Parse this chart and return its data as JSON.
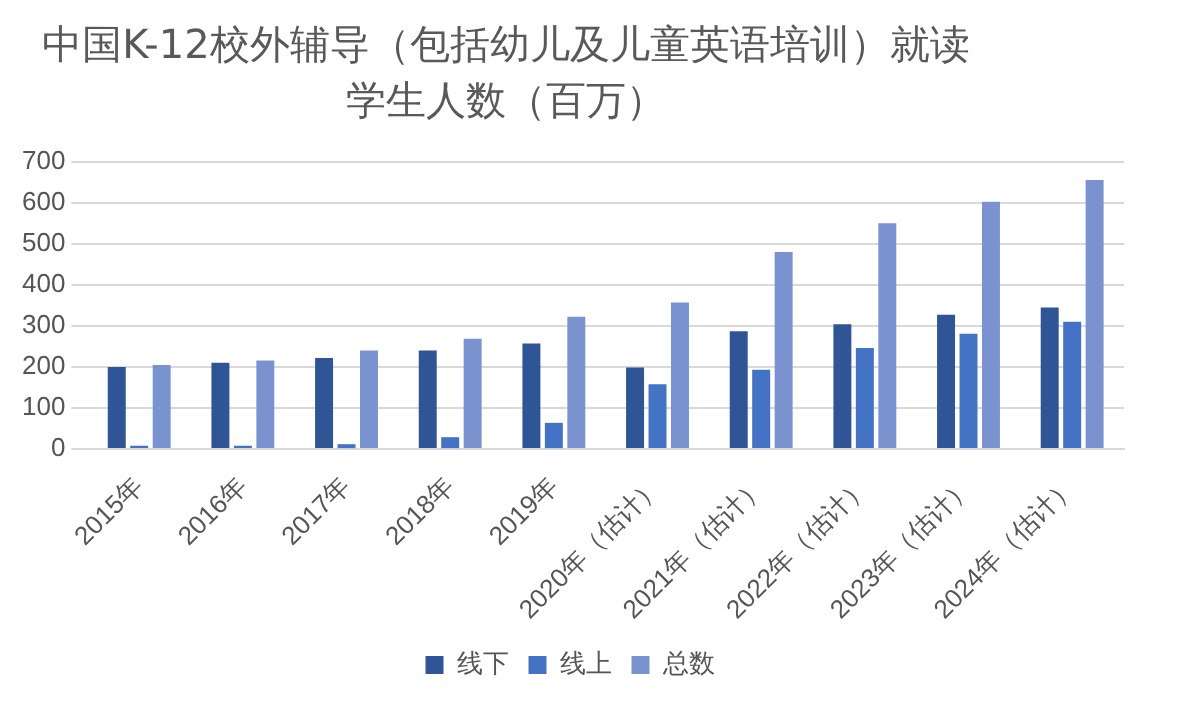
{
  "chart_data": {
    "type": "bar",
    "title": "中国K-12校外辅导（包括幼儿及儿童英语培训）就读学生人数（百万）",
    "categories": [
      "2015年",
      "2016年",
      "2017年",
      "2018年",
      "2019年",
      "2020年（估计）",
      "2021年（估计）",
      "2022年（估计）",
      "2023年（估计）",
      "2024年（估计）"
    ],
    "series": [
      {
        "name": "线下",
        "color": "#2f5597",
        "values": [
          200,
          210,
          222,
          240,
          257,
          199,
          287,
          304,
          327,
          345
        ]
      },
      {
        "name": "线上",
        "color": "#4472c4",
        "values": [
          8,
          8,
          12,
          29,
          64,
          158,
          193,
          246,
          281,
          310
        ]
      },
      {
        "name": "总数",
        "color": "#7a93d0",
        "values": [
          205,
          216,
          240,
          269,
          322,
          357,
          480,
          550,
          602,
          655
        ]
      }
    ],
    "ylim": [
      0,
      700
    ],
    "yticks": [
      0,
      100,
      200,
      300,
      400,
      500,
      600,
      700
    ],
    "grid": "y",
    "legend": "bottom"
  }
}
